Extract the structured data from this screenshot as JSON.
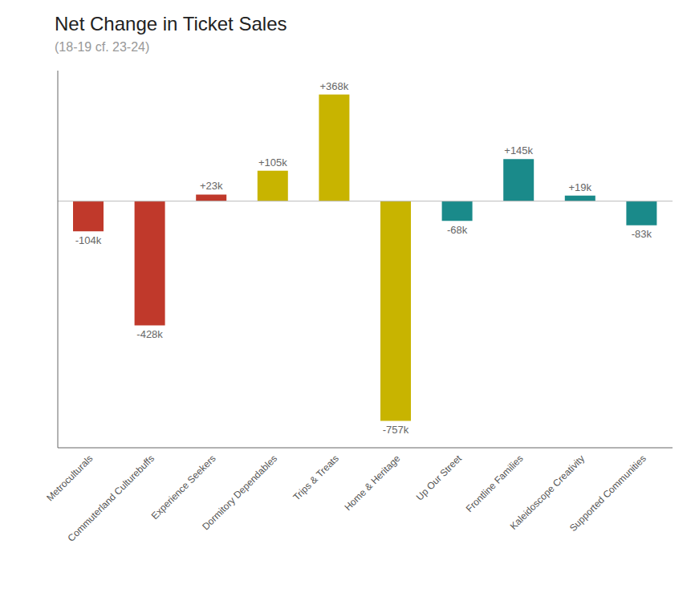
{
  "chart_data": {
    "type": "bar",
    "title": "Net Change in Ticket Sales",
    "subtitle": "(18-19 cf. 23-24)",
    "categories": [
      "Metroculturals",
      "Commuterland Culturebuffs",
      "Experience Seekers",
      "Dormitory Dependables",
      "Trips & Treats",
      "Home & Heritage",
      "Up Our Street",
      "Frontline Families",
      "Kaleidoscope Creativity",
      "Supported Communities"
    ],
    "values": [
      -104,
      -428,
      23,
      105,
      368,
      -757,
      -68,
      145,
      19,
      -83
    ],
    "value_labels": [
      "-104k",
      "-428k",
      "+23k",
      "+105k",
      "+368k",
      "-757k",
      "-68k",
      "+145k",
      "+19k",
      "-83k"
    ],
    "colors": [
      "#c0392b",
      "#c0392b",
      "#c0392b",
      "#c8b400",
      "#c8b400",
      "#c8b400",
      "#1a8a8a",
      "#1a8a8a",
      "#1a8a8a",
      "#1a8a8a"
    ],
    "ylim": [
      -850,
      450
    ],
    "grid": false,
    "data_labels": true,
    "tick_labels": "x"
  }
}
